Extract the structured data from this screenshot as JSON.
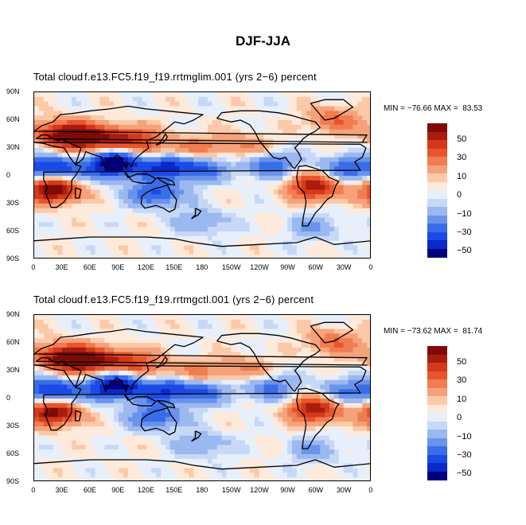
{
  "figure_title": "DJF-JJA",
  "colors": {
    "levels": [
      "#030080",
      "#0b28c8",
      "#1b4ae6",
      "#3a6de8",
      "#6a93ec",
      "#9bb8f0",
      "#c7d8f6",
      "#e7effb",
      "#fdeadb",
      "#fbc9a8",
      "#f5a27a",
      "#f07c51",
      "#e9552b",
      "#d3391a",
      "#a91d0e",
      "#7e0b05"
    ],
    "coast": "#000000"
  },
  "colorbar_labels": [
    "50",
    "30",
    "10",
    "0",
    "−10",
    "−30",
    "−50"
  ],
  "chart_data": [
    {
      "type": "heatmap",
      "title_left": "Total cloud",
      "title_right": "f.e13.FC5.f19_f19.rrtmglim.001 (yrs 2−6) percent",
      "min_max_label": "MIN = −76.66 MAX =  83.53",
      "min": -76.66,
      "max": 83.53,
      "units": "percent",
      "x_ticks": [
        "0",
        "30E",
        "60E",
        "90E",
        "120E",
        "150E",
        "180",
        "150W",
        "120W",
        "90W",
        "60W",
        "30W",
        "0"
      ],
      "y_ticks": [
        "90N",
        "60N",
        "30N",
        "0",
        "30S",
        "60S",
        "90S"
      ],
      "contour_levels": [
        -60,
        -50,
        -40,
        -30,
        -20,
        -10,
        -5,
        0,
        5,
        10,
        20,
        30,
        40,
        50,
        60
      ],
      "anomaly_centers": [
        {
          "lon": 20,
          "lat": -15,
          "value": 75
        },
        {
          "lon": 30,
          "lat": 45,
          "value": 60
        },
        {
          "lon": 60,
          "lat": 40,
          "value": 55
        },
        {
          "lon": 100,
          "lat": 40,
          "value": 45
        },
        {
          "lon": 120,
          "lat": 25,
          "value": 35
        },
        {
          "lon": 170,
          "lat": 30,
          "value": 25
        },
        {
          "lon": 225,
          "lat": 30,
          "value": 25
        },
        {
          "lon": 300,
          "lat": -12,
          "value": 60
        },
        {
          "lon": 320,
          "lat": 60,
          "value": 30
        },
        {
          "lon": 20,
          "lat": 8,
          "value": -55
        },
        {
          "lon": 80,
          "lat": 10,
          "value": -55
        },
        {
          "lon": 100,
          "lat": 20,
          "value": -45
        },
        {
          "lon": 140,
          "lat": 10,
          "value": -55
        },
        {
          "lon": 180,
          "lat": 8,
          "value": -35
        },
        {
          "lon": 250,
          "lat": 12,
          "value": -40
        },
        {
          "lon": 330,
          "lat": 8,
          "value": -35
        },
        {
          "lon": 130,
          "lat": -20,
          "value": -45
        },
        {
          "lon": 180,
          "lat": -50,
          "value": -20
        },
        {
          "lon": 300,
          "lat": -55,
          "value": -20
        }
      ]
    },
    {
      "type": "heatmap",
      "title_left": "Total cloud",
      "title_right": "f.e13.FC5.f19_f19.rrtmgctl.001 (yrs 2−6) percent",
      "min_max_label": "MIN = −73.62 MAX =  81.74",
      "min": -73.62,
      "max": 81.74,
      "units": "percent",
      "x_ticks": [
        "0",
        "30E",
        "60E",
        "90E",
        "120E",
        "150E",
        "180",
        "150W",
        "120W",
        "90W",
        "60W",
        "30W",
        "0"
      ],
      "y_ticks": [
        "90N",
        "60N",
        "30N",
        "0",
        "30S",
        "60S",
        "90S"
      ],
      "contour_levels": [
        -60,
        -50,
        -40,
        -30,
        -20,
        -10,
        -5,
        0,
        5,
        10,
        20,
        30,
        40,
        50,
        60
      ],
      "anomaly_centers": [
        {
          "lon": 20,
          "lat": -15,
          "value": 70
        },
        {
          "lon": 30,
          "lat": 45,
          "value": 60
        },
        {
          "lon": 60,
          "lat": 40,
          "value": 55
        },
        {
          "lon": 100,
          "lat": 40,
          "value": 40
        },
        {
          "lon": 120,
          "lat": 25,
          "value": 30
        },
        {
          "lon": 170,
          "lat": 28,
          "value": 25
        },
        {
          "lon": 225,
          "lat": 30,
          "value": 25
        },
        {
          "lon": 300,
          "lat": -12,
          "value": 60
        },
        {
          "lon": 320,
          "lat": 60,
          "value": 30
        },
        {
          "lon": 20,
          "lat": 8,
          "value": -55
        },
        {
          "lon": 80,
          "lat": 10,
          "value": -50
        },
        {
          "lon": 100,
          "lat": 20,
          "value": -45
        },
        {
          "lon": 140,
          "lat": 10,
          "value": -50
        },
        {
          "lon": 180,
          "lat": 8,
          "value": -35
        },
        {
          "lon": 250,
          "lat": 12,
          "value": -35
        },
        {
          "lon": 330,
          "lat": 8,
          "value": -30
        },
        {
          "lon": 130,
          "lat": -20,
          "value": -40
        },
        {
          "lon": 180,
          "lat": -50,
          "value": -20
        },
        {
          "lon": 300,
          "lat": -55,
          "value": -20
        }
      ]
    }
  ]
}
